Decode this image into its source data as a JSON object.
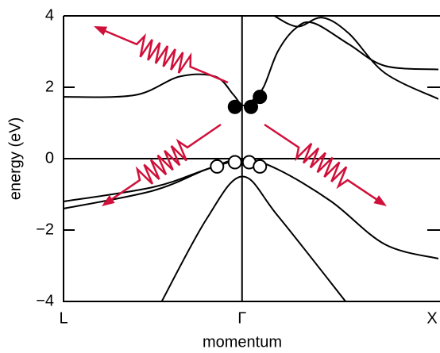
{
  "chart_data": {
    "type": "band-structure",
    "ylabel": "energy (eV)",
    "xlabel": "momentum",
    "xlim": [
      -1,
      1.1
    ],
    "xticks": [
      {
        "value": -1,
        "label": "L"
      },
      {
        "value": 0,
        "label": "Γ"
      },
      {
        "value": 1.08,
        "label": "X"
      }
    ],
    "ylim": [
      -4,
      4
    ],
    "yticks": [
      {
        "value": -4,
        "label": "−4"
      },
      {
        "value": -2,
        "label": "−2"
      },
      0,
      2,
      4
    ],
    "color": "#000000",
    "series": [
      {
        "x": [
          -1,
          -0.6,
          -0.35,
          -0.15,
          -0.05,
          0,
          0.05,
          0.12,
          0.2,
          0.3,
          0.4,
          0.6,
          0.8,
          1.1
        ],
        "values": [
          1.73,
          1.78,
          2.3,
          2.3,
          1.8,
          1.5,
          1.6,
          2.0,
          3.0,
          3.65,
          3.8,
          3.2,
          2.6,
          2.5
        ]
      },
      {
        "x": [
          0.18,
          0.31,
          0.45,
          0.6,
          0.8,
          1.1
        ],
        "values": [
          4,
          3.7,
          3.95,
          3.5,
          2.4,
          1.67
        ]
      },
      {
        "x": [
          -1,
          -0.5,
          -0.2,
          0,
          0.2,
          0.5,
          0.8,
          1.1
        ],
        "values": [
          -1.2,
          -0.8,
          -0.3,
          0,
          -0.3,
          -1.2,
          -2.4,
          -2.8
        ]
      },
      {
        "x": [
          -1,
          -0.5,
          -0.2,
          0
        ],
        "values": [
          -1.4,
          -0.9,
          -0.3,
          0
        ]
      },
      {
        "x": [
          -0.45,
          -0.2,
          0,
          0.2,
          0.58
        ],
        "values": [
          -4,
          -1.7,
          -0.5,
          -1.6,
          -4
        ]
      }
    ],
    "dots": [
      {
        "marker": "filled",
        "x": [
          -0.04,
          0.05,
          0.1
        ],
        "values": [
          1.45,
          1.45,
          1.73
        ]
      },
      {
        "marker": "open",
        "x": [
          -0.14,
          -0.04,
          0.04,
          0.1
        ],
        "values": [
          -0.22,
          -0.1,
          -0.1,
          -0.22
        ]
      }
    ]
  }
}
